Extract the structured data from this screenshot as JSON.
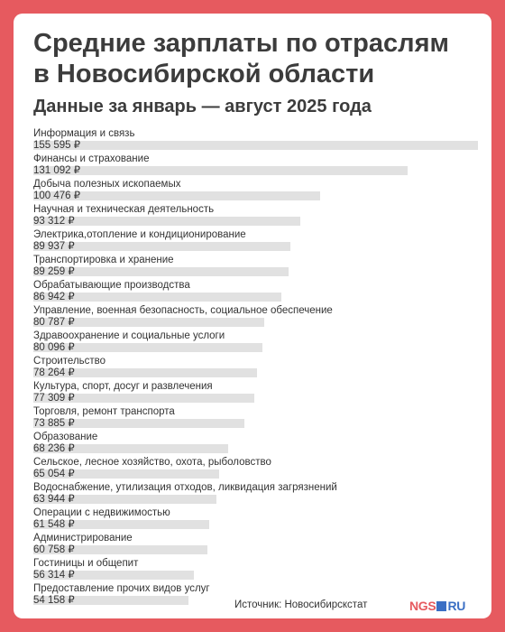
{
  "header": {
    "title": "Средние зарплаты по отраслям\nв Новосибирской области",
    "subtitle": "Данные за январь — август 2025 года"
  },
  "chart_data": {
    "type": "bar",
    "orientation": "horizontal",
    "unit": "₽",
    "categories": [
      "Информация и связь",
      "Финансы и страхование",
      "Добыча полезных ископаемых",
      "Научная и техническая деятельность",
      "Электрика,отопление и кондиционирование",
      "Транспортировка и хранение",
      "Обрабатывающие производства",
      "Управление, военная безопасность, социальное обеспечение",
      "Здравоохранение и социальные услоги",
      "Строительство",
      "Культура, спорт, досуг и развлечения",
      "Торговля, ремонт транспорта",
      "Образование",
      "Сельское, лесное хозяйство, охота, рыболовство",
      "Водоснабжение, утилизация отходов, ликвидация загрязнений",
      "Операции с недвижимостью",
      "Администрирование",
      "Гостиницы и общепит",
      "Предоставление прочих видов услуг"
    ],
    "values": [
      155595,
      131092,
      100476,
      93312,
      89937,
      89259,
      86942,
      80787,
      80096,
      78264,
      77309,
      73885,
      68236,
      65054,
      63944,
      61548,
      60758,
      56314,
      54158
    ],
    "value_labels": [
      "155 595 ₽",
      "131 092 ₽",
      "100 476 ₽",
      "93 312 ₽",
      "89 937 ₽",
      "89 259 ₽",
      "86 942 ₽",
      "80 787 ₽",
      "80 096 ₽",
      "78 264 ₽",
      "77 309 ₽",
      "73 885 ₽",
      "68 236 ₽",
      "65 054 ₽",
      "63 944 ₽",
      "61 548 ₽",
      "60 758 ₽",
      "56 314 ₽",
      "54 158 ₽"
    ],
    "xlim": [
      0,
      155595
    ],
    "bar_color": "#e1e1e1",
    "grid": false
  },
  "footer": {
    "source": "Источник: Новосибирскстат",
    "logo_left": "NGS",
    "logo_right": "RU"
  },
  "colors": {
    "background": "#e65a5f",
    "card": "#ffffff",
    "text": "#3c3c3c",
    "logo_blue": "#3b6fc4"
  }
}
